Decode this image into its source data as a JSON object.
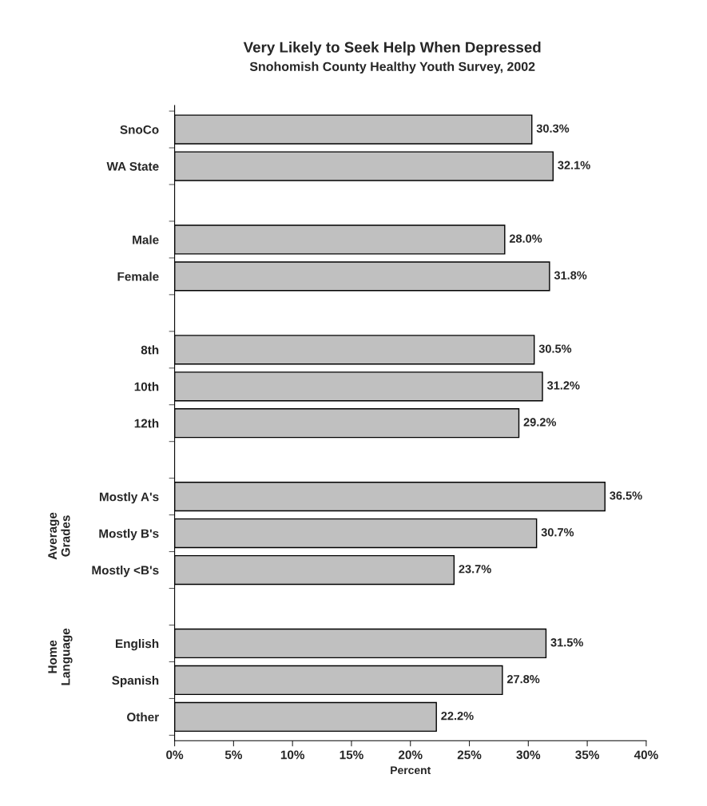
{
  "chart_data": {
    "type": "bar",
    "orientation": "horizontal",
    "title": "Very Likely to Seek Help When Depressed",
    "subtitle": "Snohomish County Healthy Youth Survey, 2002",
    "xlabel": "Percent",
    "categories": [
      "SnoCo",
      "WA State",
      null,
      "Male",
      "Female",
      null,
      "8th",
      "10th",
      "12th",
      null,
      "Mostly A's",
      "Mostly B's",
      "Mostly <B's",
      null,
      "English",
      "Spanish",
      "Other"
    ],
    "values": [
      30.3,
      32.1,
      null,
      28.0,
      31.8,
      null,
      30.5,
      31.2,
      29.2,
      null,
      36.5,
      30.7,
      23.7,
      null,
      31.5,
      27.8,
      22.2
    ],
    "value_labels": [
      "30.3%",
      "32.1%",
      null,
      "28.0%",
      "31.8%",
      null,
      "30.5%",
      "31.2%",
      "29.2%",
      null,
      "36.5%",
      "30.7%",
      "23.7%",
      null,
      "31.5%",
      "27.8%",
      "22.2%"
    ],
    "color": "#c0c0c0",
    "xlim": [
      0,
      40
    ],
    "xticks": [
      {
        "value": 0,
        "label": "0%"
      },
      {
        "value": 5,
        "label": "5%"
      },
      {
        "value": 10,
        "label": "10%"
      },
      {
        "value": 15,
        "label": "15%"
      },
      {
        "value": 20,
        "label": "20%"
      },
      {
        "value": 25,
        "label": "25%"
      },
      {
        "value": 30,
        "label": "30%"
      },
      {
        "value": 35,
        "label": "35%"
      },
      {
        "value": 40,
        "label": "40%"
      }
    ],
    "annotations": [
      "Average Grades",
      "Home Language"
    ],
    "grid": false,
    "legend": false
  }
}
